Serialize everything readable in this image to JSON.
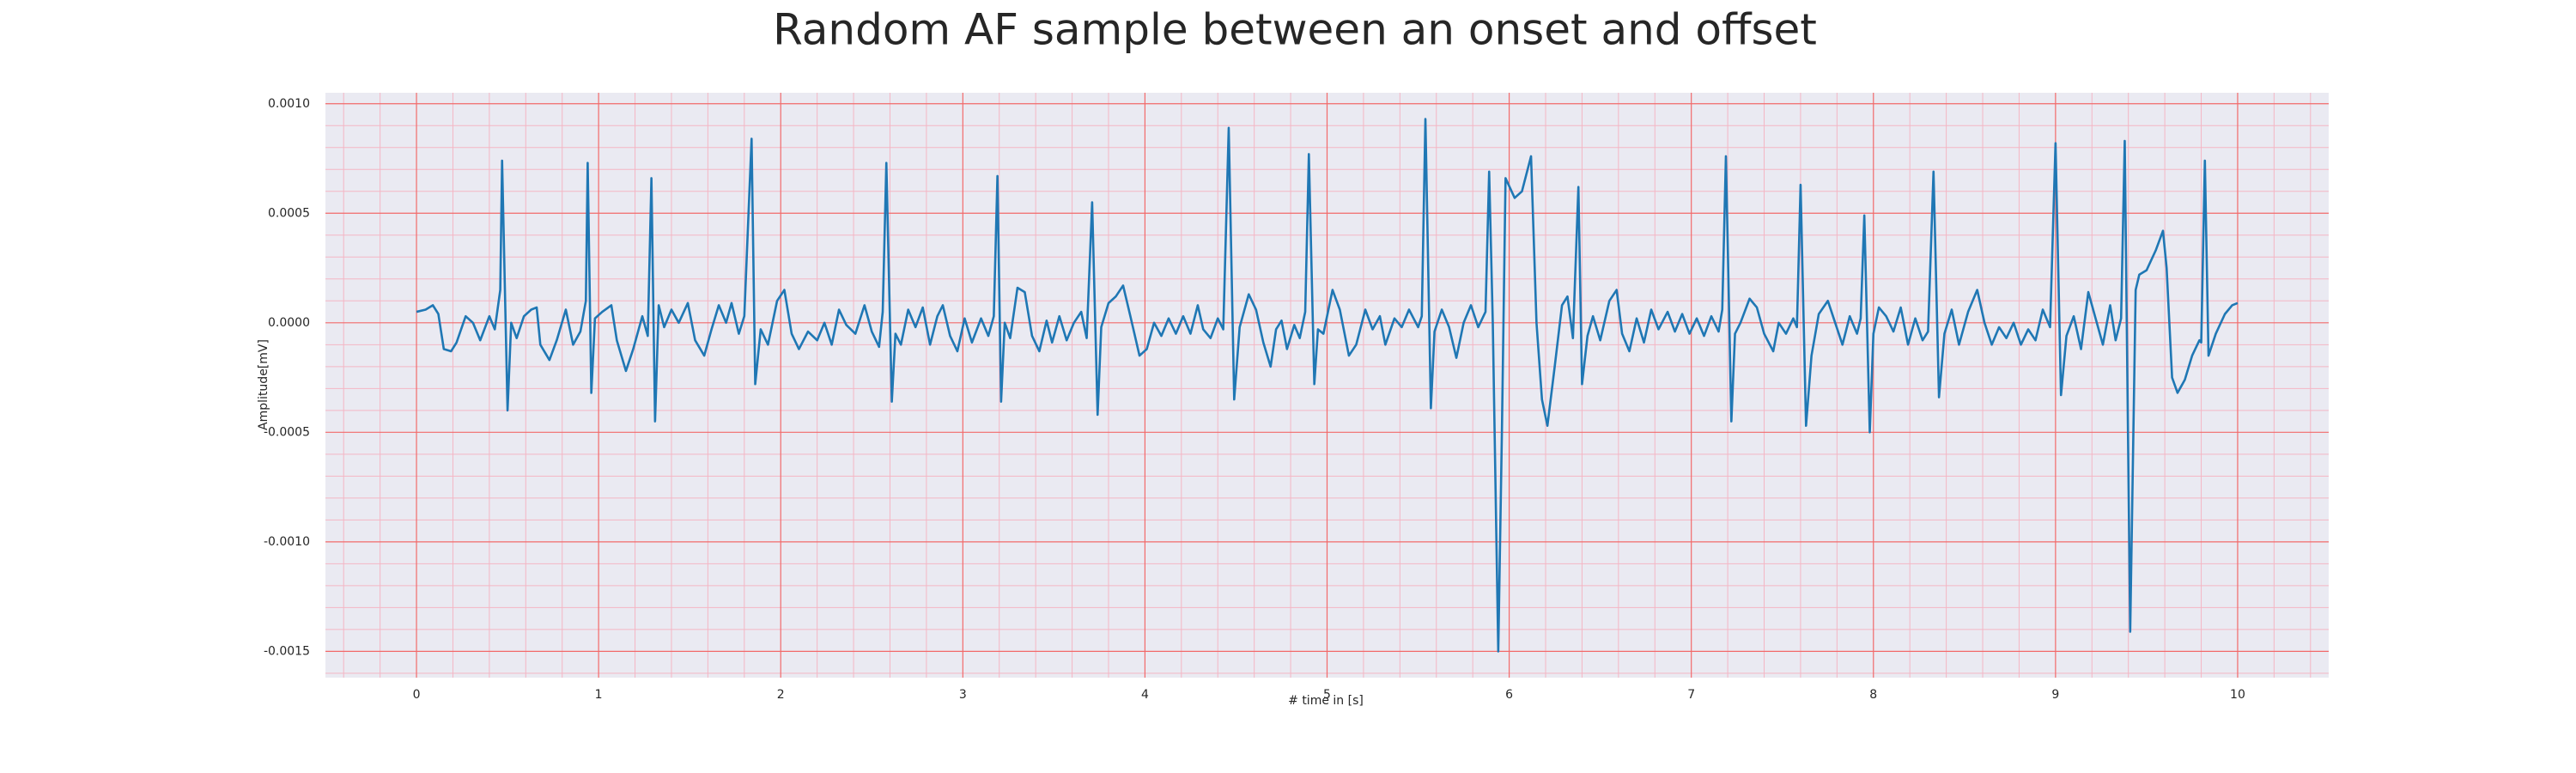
{
  "chart_data": {
    "type": "line",
    "title": "Random AF sample between an onset and offset",
    "xlabel": "# time in [s]",
    "ylabel": "Amplitude[mV]",
    "color": "#1f77b4",
    "xlim": [
      -0.5,
      10.5
    ],
    "ylim": [
      -0.00162,
      0.00105
    ],
    "xticks": [
      0,
      1,
      2,
      3,
      4,
      5,
      6,
      7,
      8,
      9,
      10
    ],
    "yticks": [
      {
        "value": -0.0015,
        "label": "-0.0015"
      },
      {
        "value": -0.001,
        "label": "-0.0010"
      },
      {
        "value": -0.0005,
        "label": "-0.0005"
      },
      {
        "value": 0,
        "label": "0.0000"
      },
      {
        "value": 0.0005,
        "label": "0.0005"
      },
      {
        "value": 0.001,
        "label": "0.0010"
      }
    ],
    "grid": true,
    "minor_grid_divisions": 5,
    "x": [
      0.0,
      0.05,
      0.09,
      0.12,
      0.15,
      0.19,
      0.22,
      0.27,
      0.31,
      0.35,
      0.4,
      0.43,
      0.46,
      0.47,
      0.5,
      0.52,
      0.55,
      0.59,
      0.63,
      0.66,
      0.68,
      0.73,
      0.77,
      0.82,
      0.86,
      0.9,
      0.93,
      0.94,
      0.96,
      0.98,
      1.02,
      1.07,
      1.1,
      1.15,
      1.19,
      1.24,
      1.27,
      1.29,
      1.31,
      1.33,
      1.36,
      1.4,
      1.44,
      1.49,
      1.53,
      1.58,
      1.62,
      1.66,
      1.7,
      1.73,
      1.77,
      1.8,
      1.84,
      1.86,
      1.89,
      1.93,
      1.98,
      2.02,
      2.06,
      2.1,
      2.15,
      2.2,
      2.24,
      2.28,
      2.32,
      2.36,
      2.41,
      2.46,
      2.5,
      2.54,
      2.56,
      2.58,
      2.61,
      2.63,
      2.66,
      2.7,
      2.74,
      2.78,
      2.82,
      2.86,
      2.89,
      2.93,
      2.97,
      3.01,
      3.05,
      3.1,
      3.14,
      3.17,
      3.19,
      3.21,
      3.23,
      3.26,
      3.3,
      3.34,
      3.38,
      3.42,
      3.46,
      3.49,
      3.53,
      3.57,
      3.61,
      3.65,
      3.68,
      3.71,
      3.74,
      3.76,
      3.8,
      3.84,
      3.88,
      3.92,
      3.97,
      4.01,
      4.05,
      4.09,
      4.13,
      4.17,
      4.21,
      4.25,
      4.29,
      4.32,
      4.36,
      4.4,
      4.43,
      4.46,
      4.49,
      4.52,
      4.57,
      4.61,
      4.65,
      4.69,
      4.72,
      4.75,
      4.78,
      4.82,
      4.85,
      4.88,
      4.9,
      4.93,
      4.95,
      4.98,
      5.03,
      5.07,
      5.12,
      5.16,
      5.21,
      5.25,
      5.29,
      5.32,
      5.37,
      5.41,
      5.45,
      5.5,
      5.52,
      5.54,
      5.57,
      5.59,
      5.63,
      5.67,
      5.71,
      5.75,
      5.79,
      5.83,
      5.87,
      5.89,
      5.91,
      5.94,
      5.96,
      5.98,
      6.03,
      6.07,
      6.12,
      6.15,
      6.18,
      6.21,
      6.25,
      6.29,
      6.32,
      6.35,
      6.38,
      6.4,
      6.43,
      6.46,
      6.5,
      6.55,
      6.59,
      6.62,
      6.66,
      6.7,
      6.74,
      6.78,
      6.82,
      6.87,
      6.91,
      6.95,
      6.99,
      7.03,
      7.07,
      7.11,
      7.15,
      7.17,
      7.19,
      7.22,
      7.24,
      7.27,
      7.32,
      7.36,
      7.4,
      7.45,
      7.48,
      7.52,
      7.56,
      7.58,
      7.6,
      7.63,
      7.66,
      7.7,
      7.75,
      7.79,
      7.83,
      7.87,
      7.91,
      7.93,
      7.95,
      7.98,
      8.0,
      8.03,
      8.07,
      8.11,
      8.15,
      8.19,
      8.23,
      8.27,
      8.3,
      8.33,
      8.36,
      8.39,
      8.43,
      8.47,
      8.52,
      8.57,
      8.61,
      8.65,
      8.69,
      8.73,
      8.77,
      8.81,
      8.85,
      8.89,
      8.93,
      8.97,
      9.0,
      9.03,
      9.06,
      9.1,
      9.14,
      9.18,
      9.22,
      9.26,
      9.3,
      9.33,
      9.36,
      9.38,
      9.41,
      9.44,
      9.46,
      9.5,
      9.55,
      9.59,
      9.61,
      9.64,
      9.67,
      9.71,
      9.75,
      9.79,
      9.8,
      9.82,
      9.84,
      9.88,
      9.93,
      9.97,
      10.0
    ],
    "values": [
      5e-05,
      6e-05,
      8e-05,
      4e-05,
      -0.00012,
      -0.00013,
      -9e-05,
      3e-05,
      0,
      -8e-05,
      3e-05,
      -3e-05,
      0.00015,
      0.00074,
      -0.0004,
      0,
      -7e-05,
      3e-05,
      6e-05,
      7e-05,
      -0.0001,
      -0.00017,
      -8e-05,
      6e-05,
      -0.0001,
      -4e-05,
      0.0001,
      0.00073,
      -0.00032,
      2e-05,
      5e-05,
      8e-05,
      -8e-05,
      -0.00022,
      -0.00012,
      3e-05,
      -6e-05,
      0.00066,
      -0.00045,
      8e-05,
      -2e-05,
      6e-05,
      0,
      9e-05,
      -8e-05,
      -0.00015,
      -3e-05,
      8e-05,
      0,
      9e-05,
      -5e-05,
      3e-05,
      0.00084,
      -0.00028,
      -3e-05,
      -0.0001,
      0.0001,
      0.00015,
      -5e-05,
      -0.00012,
      -4e-05,
      -8e-05,
      0,
      -0.0001,
      6e-05,
      -1e-05,
      -5e-05,
      8e-05,
      -4e-05,
      -0.00011,
      5e-05,
      0.00073,
      -0.00036,
      -5e-05,
      -0.0001,
      6e-05,
      -2e-05,
      7e-05,
      -0.0001,
      3e-05,
      8e-05,
      -6e-05,
      -0.00013,
      2e-05,
      -9e-05,
      2e-05,
      -6e-05,
      3e-05,
      0.00067,
      -0.00036,
      0,
      -7e-05,
      0.00016,
      0.00014,
      -6e-05,
      -0.00013,
      1e-05,
      -9e-05,
      3e-05,
      -8e-05,
      0,
      5e-05,
      -7e-05,
      0.00055,
      -0.00042,
      -2e-05,
      9e-05,
      0.00012,
      0.00017,
      3e-05,
      -0.00015,
      -0.00012,
      0,
      -6e-05,
      2e-05,
      -5e-05,
      3e-05,
      -5e-05,
      8e-05,
      -3e-05,
      -7e-05,
      2e-05,
      -3e-05,
      0.00089,
      -0.00035,
      -2e-05,
      0.00013,
      6e-05,
      -9e-05,
      -0.0002,
      -3e-05,
      1e-05,
      -0.00012,
      -1e-05,
      -7e-05,
      5e-05,
      0.00077,
      -0.00028,
      -3e-05,
      -5e-05,
      0.00015,
      6e-05,
      -0.00015,
      -0.0001,
      6e-05,
      -3e-05,
      3e-05,
      -0.0001,
      2e-05,
      -2e-05,
      6e-05,
      -2e-05,
      3e-05,
      0.00093,
      -0.00039,
      -4e-05,
      6e-05,
      -2e-05,
      -0.00016,
      0,
      8e-05,
      -2e-05,
      5e-05,
      0.00069,
      0,
      -0.0015,
      -0.0005,
      0.00066,
      0.00057,
      0.0006,
      0.00076,
      0,
      -0.00035,
      -0.00047,
      -0.0002,
      8e-05,
      0.00012,
      -7e-05,
      0.00062,
      -0.00028,
      -6e-05,
      3e-05,
      -8e-05,
      0.0001,
      0.00015,
      -5e-05,
      -0.00013,
      2e-05,
      -9e-05,
      6e-05,
      -3e-05,
      5e-05,
      -4e-05,
      4e-05,
      -5e-05,
      2e-05,
      -6e-05,
      3e-05,
      -4e-05,
      6e-05,
      0.00076,
      -0.00045,
      -5e-05,
      0,
      0.00011,
      7e-05,
      -5e-05,
      -0.00013,
      0,
      -5e-05,
      2e-05,
      -2e-05,
      0.00063,
      -0.00047,
      -0.00015,
      4e-05,
      0.0001,
      0,
      -0.0001,
      3e-05,
      -5e-05,
      2e-05,
      0.00049,
      -0.0005,
      -5e-05,
      7e-05,
      3e-05,
      -4e-05,
      7e-05,
      -0.0001,
      2e-05,
      -8e-05,
      -4e-05,
      0.00069,
      -0.00034,
      -5e-05,
      6e-05,
      -0.0001,
      5e-05,
      0.00015,
      0,
      -0.0001,
      -2e-05,
      -7e-05,
      0,
      -0.0001,
      -3e-05,
      -8e-05,
      6e-05,
      -2e-05,
      0.00082,
      -0.00033,
      -6e-05,
      3e-05,
      -0.00012,
      0.00014,
      2e-05,
      -0.0001,
      8e-05,
      -8e-05,
      2e-05,
      0.00083,
      -0.00141,
      0.00015,
      0.00022,
      0.00024,
      0.00033,
      0.00042,
      0.00025,
      -0.00025,
      -0.00032,
      -0.00026,
      -0.00015,
      -8e-05,
      -9e-05,
      0.00074,
      -0.00015,
      -5e-05,
      4e-05,
      8e-05,
      9e-05
    ]
  }
}
